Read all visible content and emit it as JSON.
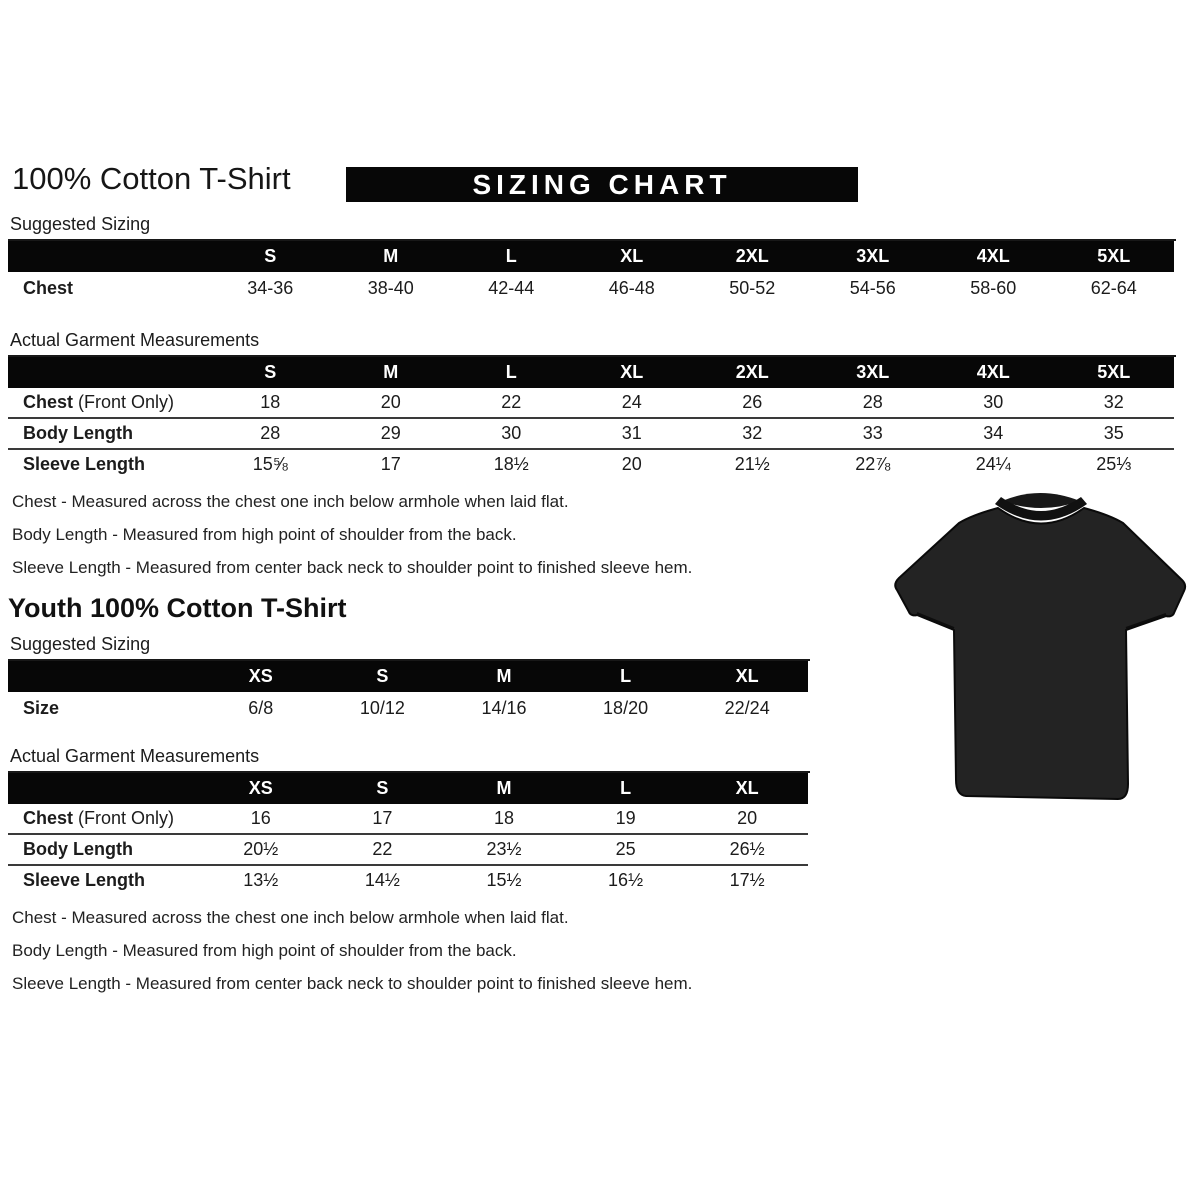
{
  "header": {
    "title": "100% Cotton T-Shirt",
    "banner": "SIZING CHART"
  },
  "adult": {
    "suggested_label": "Suggested Sizing",
    "suggested": {
      "columns": [
        "S",
        "M",
        "L",
        "XL",
        "2XL",
        "3XL",
        "4XL",
        "5XL"
      ],
      "rows": [
        {
          "label": "Chest",
          "suffix": "",
          "values": [
            "34-36",
            "38-40",
            "42-44",
            "46-48",
            "50-52",
            "54-56",
            "58-60",
            "62-64"
          ]
        }
      ]
    },
    "actual_label": "Actual Garment Measurements",
    "actual": {
      "columns": [
        "S",
        "M",
        "L",
        "XL",
        "2XL",
        "3XL",
        "4XL",
        "5XL"
      ],
      "rows": [
        {
          "label": "Chest",
          "suffix": " (Front Only)",
          "values": [
            "18",
            "20",
            "22",
            "24",
            "26",
            "28",
            "30",
            "32"
          ]
        },
        {
          "label": "Body Length",
          "suffix": "",
          "values": [
            "28",
            "29",
            "30",
            "31",
            "32",
            "33",
            "34",
            "35"
          ]
        },
        {
          "label": "Sleeve Length",
          "suffix": "",
          "values": [
            "15⅝",
            "17",
            "18½",
            "20",
            "21½",
            "22⅞",
            "24¼",
            "25⅓"
          ]
        }
      ]
    },
    "notes": [
      "Chest - Measured across the chest one inch below armhole when laid flat.",
      "Body Length - Measured from high point of shoulder from the back.",
      "Sleeve Length - Measured from center back neck to shoulder point to finished sleeve hem."
    ]
  },
  "youth": {
    "title": "Youth 100% Cotton T-Shirt",
    "suggested_label": "Suggested Sizing",
    "suggested": {
      "columns": [
        "XS",
        "S",
        "M",
        "L",
        "XL"
      ],
      "rows": [
        {
          "label": "Size",
          "suffix": "",
          "values": [
            "6/8",
            "10/12",
            "14/16",
            "18/20",
            "22/24"
          ]
        }
      ]
    },
    "actual_label": "Actual Garment Measurements",
    "actual": {
      "columns": [
        "XS",
        "S",
        "M",
        "L",
        "XL"
      ],
      "rows": [
        {
          "label": "Chest",
          "suffix": " (Front Only)",
          "values": [
            "16",
            "17",
            "18",
            "19",
            "20"
          ]
        },
        {
          "label": "Body Length",
          "suffix": "",
          "values": [
            "20½",
            "22",
            "23½",
            "25",
            "26½"
          ]
        },
        {
          "label": "Sleeve Length",
          "suffix": "",
          "values": [
            "13½",
            "14½",
            "15½",
            "16½",
            "17½"
          ]
        }
      ]
    },
    "notes": [
      "Chest - Measured across the chest one inch below armhole when laid flat.",
      "Body Length - Measured from high point of shoulder from the back.",
      "Sleeve Length - Measured from center back neck to shoulder point to finished sleeve hem."
    ]
  },
  "image": {
    "description": "black short-sleeve t-shirt, front view",
    "shirt_color": "#232323",
    "collar_color": "#111111"
  }
}
